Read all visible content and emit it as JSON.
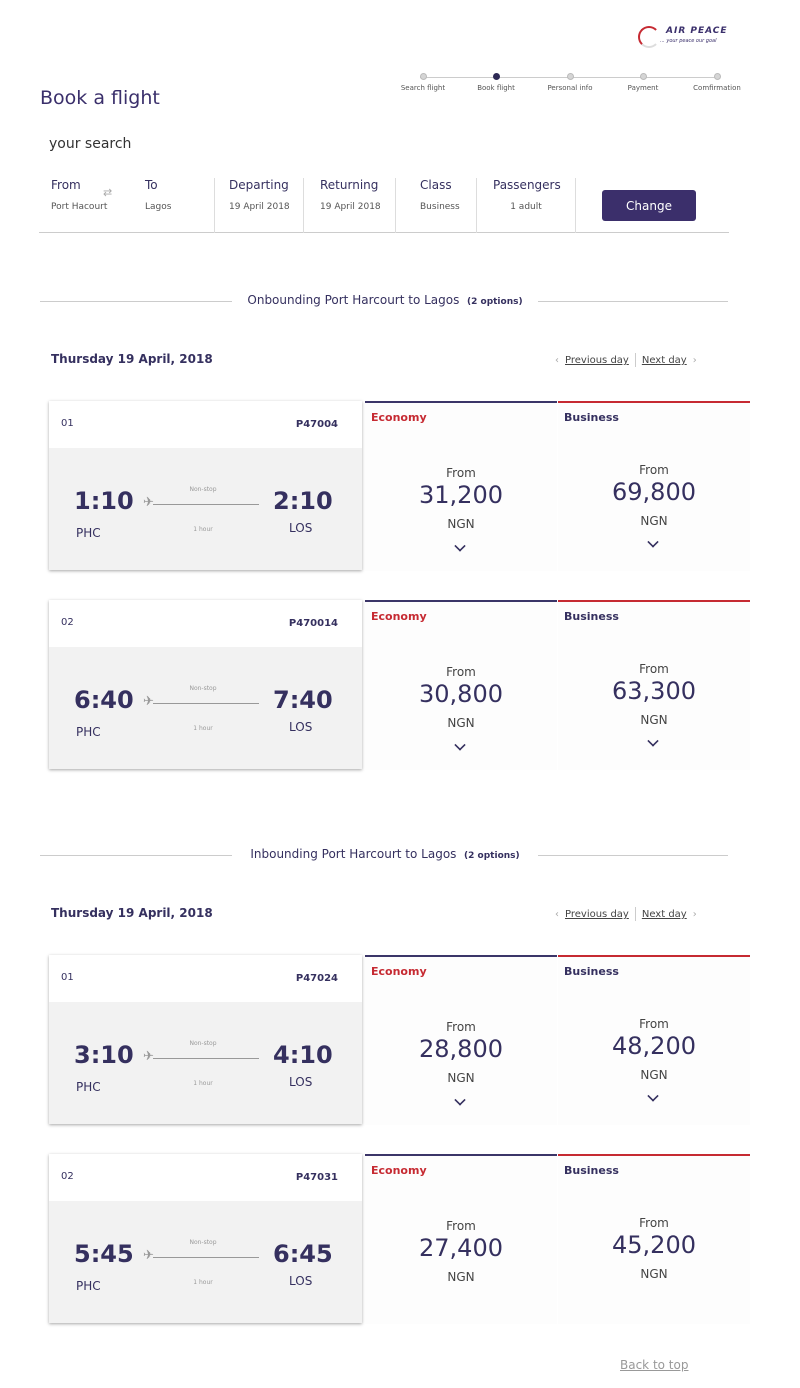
{
  "logo": {
    "name": "AIR PEACE",
    "tagline": "... your peace our goal"
  },
  "steps": [
    {
      "label": "Search flight",
      "active": false
    },
    {
      "label": "Book flight",
      "active": true
    },
    {
      "label": "Personal info",
      "active": false
    },
    {
      "label": "Payment",
      "active": false
    },
    {
      "label": "Comfirmation",
      "active": false
    }
  ],
  "page_title": "Book a flight",
  "your_search": "your search",
  "search": {
    "from_label": "From",
    "from_value": "Port Hacourt",
    "to_label": "To",
    "to_value": "Lagos",
    "departing_label": "Departing",
    "departing_value": "19 April 2018",
    "returning_label": "Returning",
    "returning_value": "19 April 2018",
    "class_label": "Class",
    "class_value": "Business",
    "passengers_label": "Passengers",
    "passengers_value": "1 adult",
    "change_label": "Change"
  },
  "sections": [
    {
      "title": "Onbounding Port Harcourt to Lagos",
      "options": "(2 options)",
      "date": "Thursday 19 April, 2018",
      "prev": "Previous day",
      "next": "Next day",
      "flights": [
        {
          "num": "01",
          "code": "P47004",
          "dep": "1:10",
          "arr": "2:10",
          "from": "PHC",
          "to": "LOS",
          "stop": "Non-stop",
          "duration": "1 hour",
          "economy": {
            "label": "Economy",
            "from": "From",
            "price": "31,200",
            "currency": "NGN"
          },
          "business": {
            "label": "Business",
            "from": "From",
            "price": "69,800",
            "currency": "NGN"
          },
          "chevron": true
        },
        {
          "num": "02",
          "code": "P470014",
          "dep": "6:40",
          "arr": "7:40",
          "from": "PHC",
          "to": "LOS",
          "stop": "Non-stop",
          "duration": "1 hour",
          "economy": {
            "label": "Economy",
            "from": "From",
            "price": "30,800",
            "currency": "NGN"
          },
          "business": {
            "label": "Business",
            "from": "From",
            "price": "63,300",
            "currency": "NGN"
          },
          "chevron": true
        }
      ]
    },
    {
      "title": "Inbounding Port Harcourt to Lagos",
      "options": "(2 options)",
      "date": "Thursday 19 April, 2018",
      "prev": "Previous day",
      "next": "Next day",
      "flights": [
        {
          "num": "01",
          "code": "P47024",
          "dep": "3:10",
          "arr": "4:10",
          "from": "PHC",
          "to": "LOS",
          "stop": "Non-stop",
          "duration": "1 hour",
          "economy": {
            "label": "Economy",
            "from": "From",
            "price": "28,800",
            "currency": "NGN"
          },
          "business": {
            "label": "Business",
            "from": "From",
            "price": "48,200",
            "currency": "NGN"
          },
          "chevron": true
        },
        {
          "num": "02",
          "code": "P47031",
          "dep": "5:45",
          "arr": "6:45",
          "from": "PHC",
          "to": "LOS",
          "stop": "Non-stop",
          "duration": "1 hour",
          "economy": {
            "label": "Economy",
            "from": "From",
            "price": "27,400",
            "currency": "NGN"
          },
          "business": {
            "label": "Business",
            "from": "From",
            "price": "45,200",
            "currency": "NGN"
          },
          "chevron": false
        }
      ]
    }
  ],
  "back_to_top": "Back to top"
}
